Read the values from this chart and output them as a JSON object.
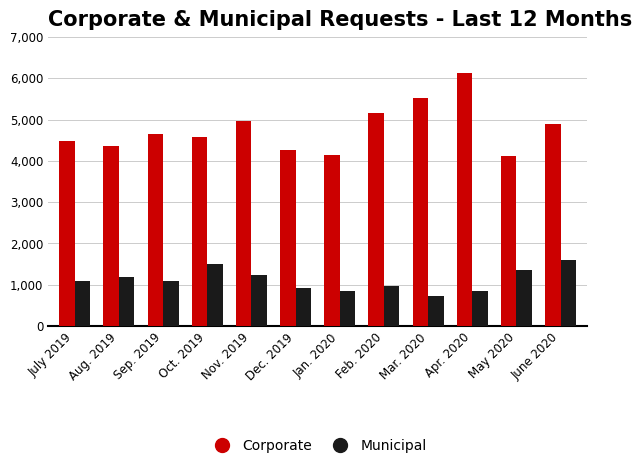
{
  "title": "Corporate & Municipal Requests - Last 12 Months",
  "categories": [
    "July 2019",
    "Aug. 2019",
    "Sep. 2019",
    "Oct. 2019",
    "Nov. 2019",
    "Dec. 2019",
    "Jan. 2020",
    "Feb. 2020",
    "Mar. 2020",
    "Apr. 2020",
    "May 2020",
    "June 2020"
  ],
  "corporate": [
    4480,
    4350,
    4650,
    4580,
    4970,
    4270,
    4130,
    5150,
    5520,
    6130,
    4120,
    4890
  ],
  "municipal": [
    1080,
    1200,
    1080,
    1510,
    1240,
    920,
    860,
    960,
    730,
    850,
    1350,
    1600
  ],
  "corporate_color": "#cc0000",
  "municipal_color": "#1a1a1a",
  "background_color": "#ffffff",
  "ylim": [
    0,
    7000
  ],
  "yticks": [
    0,
    1000,
    2000,
    3000,
    4000,
    5000,
    6000,
    7000
  ],
  "grid_color": "#cccccc",
  "title_fontsize": 15,
  "tick_fontsize": 8.5,
  "legend_labels": [
    "Corporate",
    "Municipal"
  ],
  "bar_width": 0.35
}
